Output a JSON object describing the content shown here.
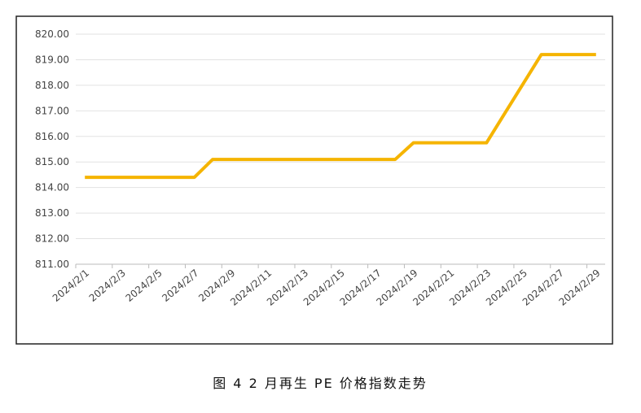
{
  "chart_data": {
    "type": "line",
    "caption": "图 4  2 月再生 PE 价格指数走势",
    "categories": [
      "2024/2/1",
      null,
      "2024/2/3",
      null,
      "2024/2/5",
      null,
      "2024/2/7",
      null,
      "2024/2/9",
      null,
      "2024/2/11",
      null,
      "2024/2/13",
      null,
      "2024/2/15",
      null,
      "2024/2/17",
      null,
      "2024/2/19",
      null,
      "2024/2/21",
      null,
      "2024/2/23",
      null,
      "2024/2/25",
      null,
      "2024/2/27",
      null,
      "2024/2/29"
    ],
    "values": [
      814.4,
      814.4,
      814.4,
      814.4,
      814.4,
      814.4,
      814.4,
      815.1,
      815.1,
      815.1,
      815.1,
      815.1,
      815.1,
      815.1,
      815.1,
      815.1,
      815.1,
      815.1,
      815.75,
      815.75,
      815.75,
      815.75,
      815.75,
      816.9,
      818.05,
      819.2,
      819.2,
      819.2,
      819.2
    ],
    "color": "#f5b400",
    "ylim": [
      811,
      820
    ],
    "yticks": [
      {
        "value": 811,
        "label": "811.00"
      },
      {
        "value": 812,
        "label": "812.00"
      },
      {
        "value": 813,
        "label": "813.00"
      },
      {
        "value": 814,
        "label": "814.00"
      },
      {
        "value": 815,
        "label": "815.00"
      },
      {
        "value": 816,
        "label": "816.00"
      },
      {
        "value": 817,
        "label": "817.00"
      },
      {
        "value": 818,
        "label": "818.00"
      },
      {
        "value": 819,
        "label": "819.00"
      },
      {
        "value": 820,
        "label": "820.00"
      }
    ],
    "grid": true
  }
}
